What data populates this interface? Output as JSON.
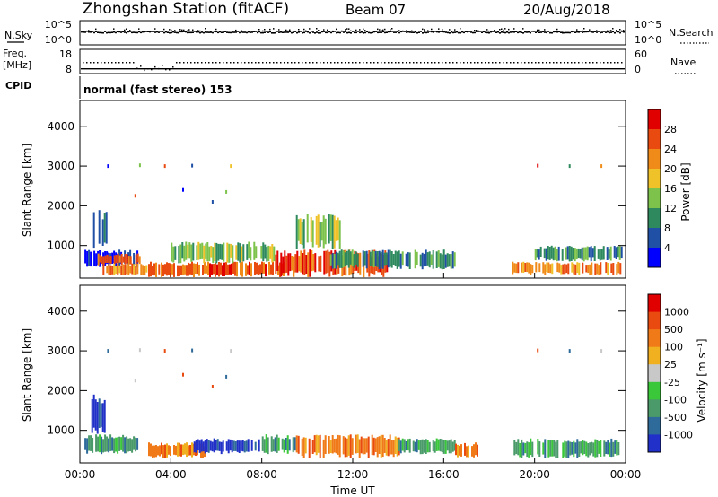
{
  "header": {
    "title": "Zhongshan Station (fitACF)",
    "beam": "Beam 07",
    "date": "20/Aug/2018"
  },
  "param_panels": {
    "nsky": {
      "left_label": "N.Sky",
      "right_label": "N.Search",
      "left_ticks": [
        "10^5",
        "10^0"
      ],
      "right_ticks": [
        "10^5",
        "10^0"
      ]
    },
    "freq": {
      "left_label_1": "Freq.",
      "left_label_2": "[MHz]",
      "right_label": "Nave",
      "left_ticks": [
        "18",
        "8"
      ],
      "right_ticks": [
        "60",
        "0"
      ]
    },
    "cpid": {
      "label": "CPID",
      "value": "normal (fast stereo) 153"
    }
  },
  "chart_data": [
    {
      "type": "heatmap",
      "title": "",
      "xlabel": "Time UT",
      "ylabel": "Slant Range [km]",
      "x_ticks": [
        "00:00",
        "04:00",
        "08:00",
        "12:00",
        "16:00",
        "20:00",
        "00:00"
      ],
      "y_ticks": [
        1000,
        2000,
        3000,
        4000
      ],
      "xlim_hours": [
        0,
        24
      ],
      "ylim": [
        180,
        4650
      ],
      "colorbar": {
        "label": "Power [dB]",
        "ticks": [
          "4",
          "8",
          "12",
          "16",
          "20",
          "24",
          "28"
        ],
        "colors": [
          "#0000ff",
          "#1f50a5",
          "#2e8a5e",
          "#7cc24b",
          "#f0c22a",
          "#f08a18",
          "#e84a10",
          "#e00000"
        ]
      },
      "bands": [
        {
          "start": 0.2,
          "end": 2.5,
          "rmin": 450,
          "rmax": 900,
          "level": 0
        },
        {
          "start": 0.5,
          "end": 1.2,
          "rmin": 900,
          "rmax": 1900,
          "level": 1
        },
        {
          "start": 0.7,
          "end": 2.6,
          "rmin": 500,
          "rmax": 800,
          "level": 6
        },
        {
          "start": 1.0,
          "end": 3.5,
          "rmin": 250,
          "rmax": 550,
          "level": 5
        },
        {
          "start": 3.0,
          "end": 9.0,
          "rmin": 200,
          "rmax": 600,
          "level": 6
        },
        {
          "start": 4.0,
          "end": 8.5,
          "rmin": 550,
          "rmax": 1100,
          "level": 3
        },
        {
          "start": 8.5,
          "end": 13.5,
          "rmin": 200,
          "rmax": 900,
          "level": 6
        },
        {
          "start": 9.5,
          "end": 11.5,
          "rmin": 900,
          "rmax": 1800,
          "level": 3
        },
        {
          "start": 11.0,
          "end": 16.5,
          "rmin": 400,
          "rmax": 900,
          "level": 2
        },
        {
          "start": 19.0,
          "end": 23.8,
          "rmin": 250,
          "rmax": 600,
          "level": 5
        },
        {
          "start": 20.0,
          "end": 23.8,
          "rmin": 600,
          "rmax": 1000,
          "level": 2
        }
      ]
    },
    {
      "type": "heatmap",
      "title": "",
      "xlabel": "Time UT",
      "ylabel": "Slant Range [km]",
      "x_ticks": [
        "00:00",
        "04:00",
        "08:00",
        "12:00",
        "16:00",
        "20:00",
        "00:00"
      ],
      "y_ticks": [
        1000,
        2000,
        3000,
        4000
      ],
      "xlim_hours": [
        0,
        24
      ],
      "ylim": [
        180,
        4650
      ],
      "colorbar": {
        "label": "Velocity [m s⁻¹]",
        "ticks": [
          "1000",
          "500",
          "100",
          "25",
          "-25",
          "-100",
          "-500",
          "-1000"
        ],
        "colors": [
          "#2030c8",
          "#2e6a9a",
          "#4a9a6a",
          "#3ac83a",
          "#c8c8c8",
          "#f0b020",
          "#f07a18",
          "#e84a10",
          "#e00000"
        ]
      },
      "bands": [
        {
          "start": 0.2,
          "end": 2.5,
          "rmin": 400,
          "rmax": 900,
          "level": 2
        },
        {
          "start": 0.5,
          "end": 1.2,
          "rmin": 900,
          "rmax": 1900,
          "level": 0
        },
        {
          "start": 3.0,
          "end": 5.5,
          "rmin": 300,
          "rmax": 700,
          "level": 6
        },
        {
          "start": 5.0,
          "end": 8.0,
          "rmin": 400,
          "rmax": 800,
          "level": 0
        },
        {
          "start": 8.0,
          "end": 9.5,
          "rmin": 400,
          "rmax": 900,
          "level": 2
        },
        {
          "start": 9.5,
          "end": 14.0,
          "rmin": 300,
          "rmax": 900,
          "level": 6
        },
        {
          "start": 14.0,
          "end": 16.5,
          "rmin": 400,
          "rmax": 800,
          "level": 2
        },
        {
          "start": 16.5,
          "end": 17.5,
          "rmin": 300,
          "rmax": 700,
          "level": 6
        },
        {
          "start": 19.0,
          "end": 23.8,
          "rmin": 300,
          "rmax": 800,
          "level": 2
        }
      ]
    }
  ]
}
